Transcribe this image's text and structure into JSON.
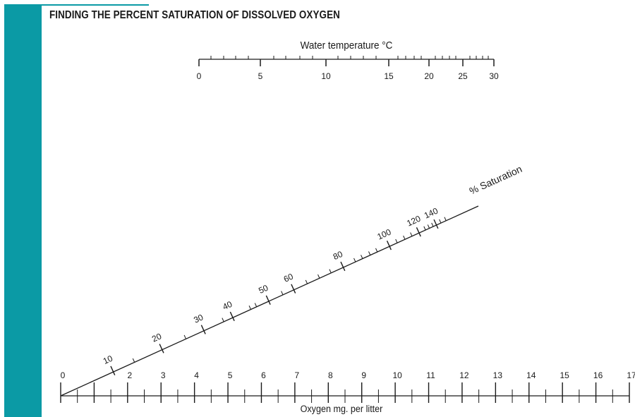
{
  "title": "FINDING THE PERCENT SATURATION OF DISSOLVED OXYGEN",
  "colors": {
    "accent_bar": "#0b9aa5",
    "ink": "#1a1a1a",
    "background": "#ffffff"
  },
  "scales": {
    "temperature": {
      "label": "Water temperature °C",
      "min": 0,
      "max": 30,
      "major_ticks": [
        0,
        5,
        10,
        15,
        20,
        25,
        30
      ],
      "tick_labels": [
        "0",
        "5",
        "10",
        "15",
        "20",
        "25",
        "30"
      ]
    },
    "saturation": {
      "label": "% Saturation",
      "tick_labels": [
        "10",
        "20",
        "30",
        "40",
        "50",
        "60",
        "80",
        "100",
        "120",
        "140"
      ]
    },
    "oxygen": {
      "label": "Oxygen mg. per litter",
      "min": 0,
      "max": 17,
      "tick_labels": [
        "0",
        "2",
        "3",
        "4",
        "5",
        "6",
        "7",
        "8",
        "9",
        "10",
        "11",
        "12",
        "13",
        "14",
        "15",
        "16",
        "17"
      ]
    }
  }
}
